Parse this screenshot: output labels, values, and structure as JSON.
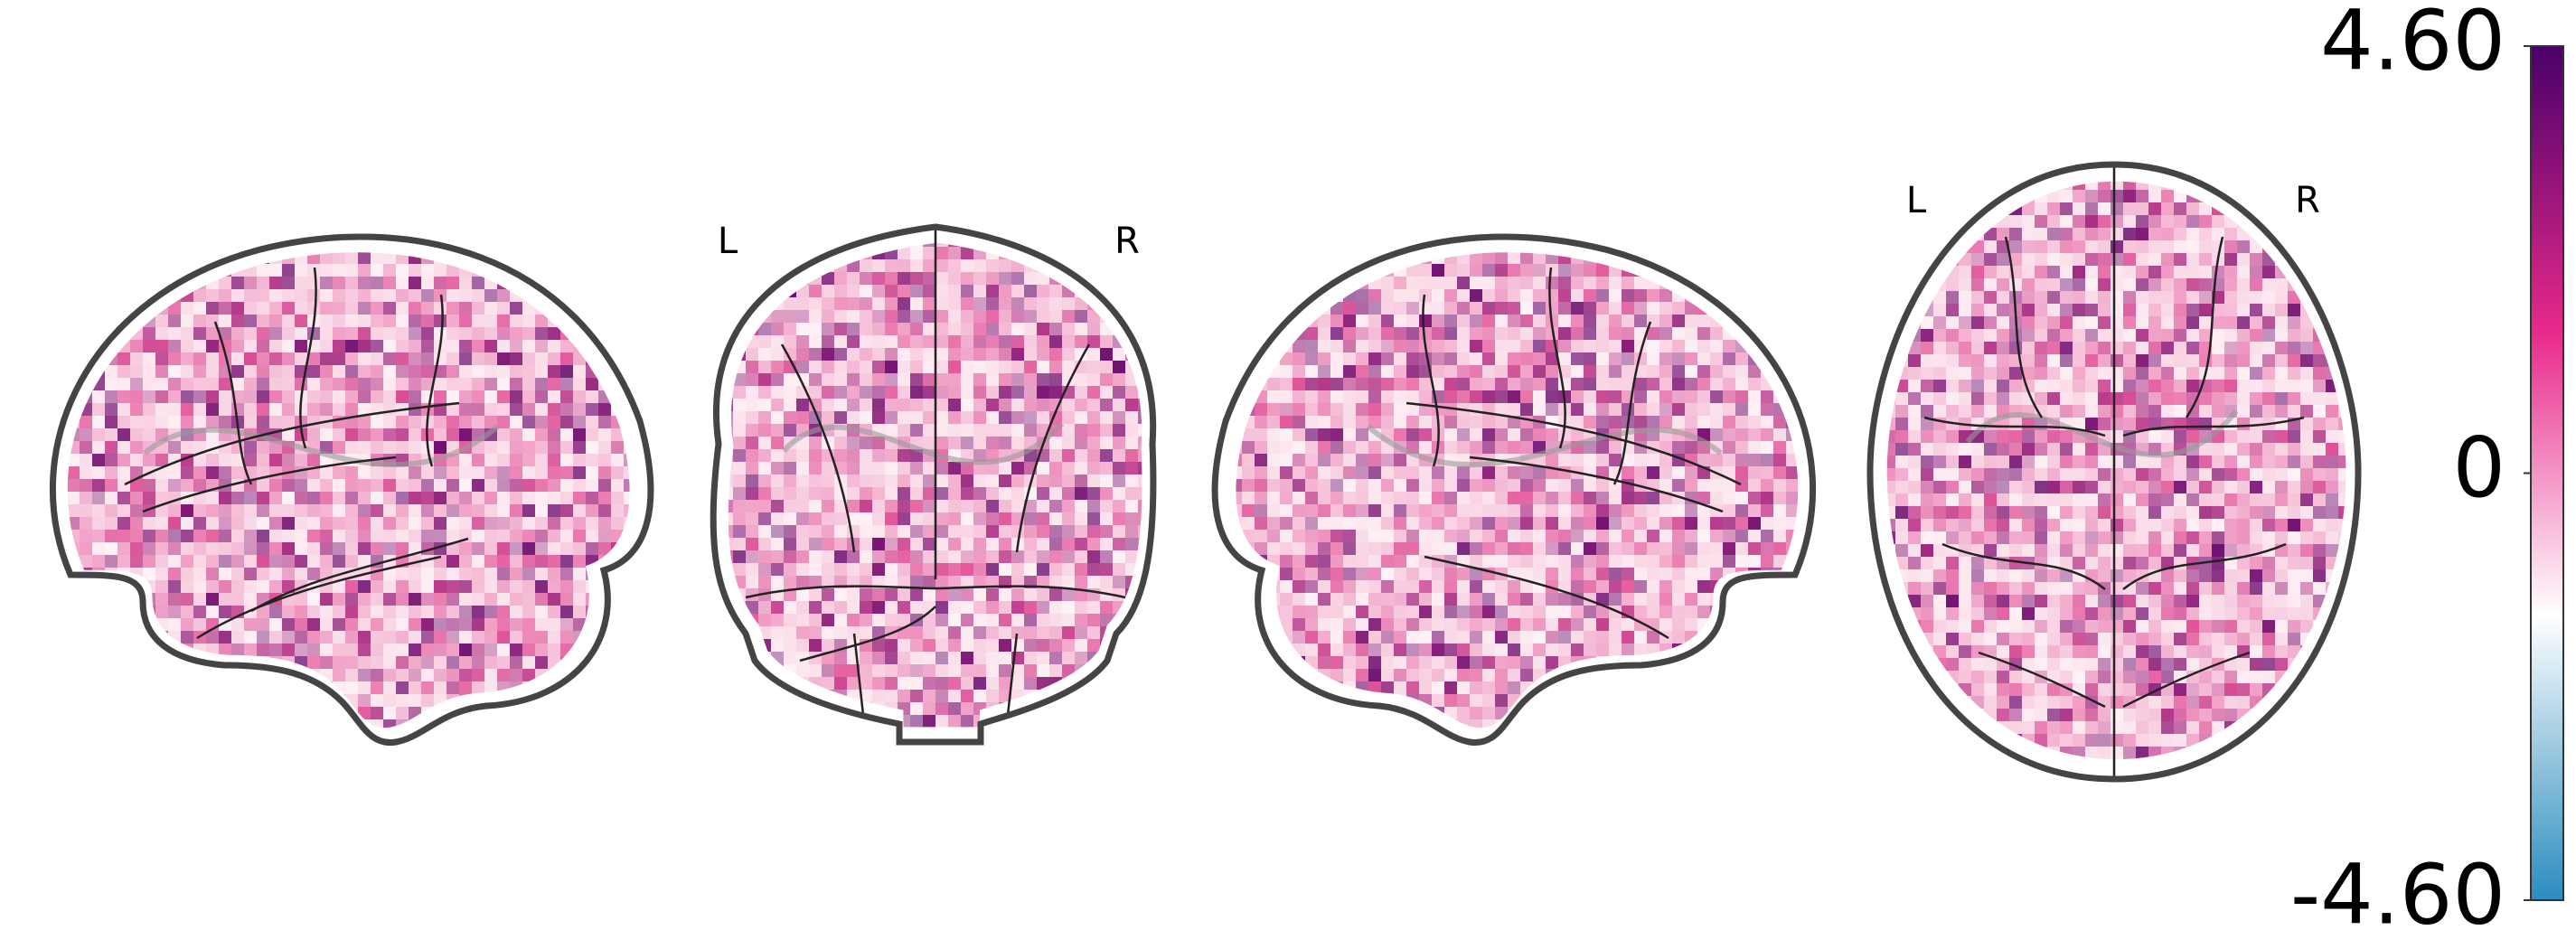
{
  "chart_data": {
    "type": "glass_brain",
    "view_labels": [
      "L",
      "R",
      "L",
      "R"
    ],
    "colorbar": {
      "clim": [
        -4.6,
        4.6
      ],
      "ticks": [
        {
          "value": 4.6,
          "label": "4.60"
        },
        0,
        {
          "value": -4.6,
          "label": "-4.60"
        }
      ],
      "colors": [
        "#2b8cbe",
        "#ffffff",
        "#e7298a",
        "#49006a"
      ]
    }
  }
}
